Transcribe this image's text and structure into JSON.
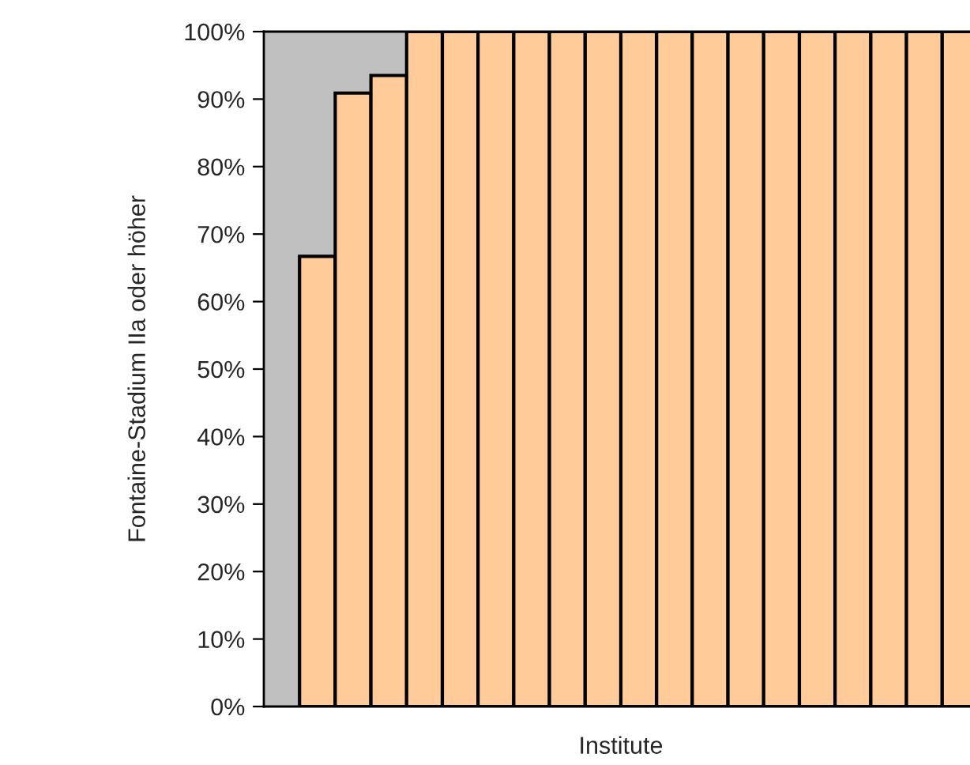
{
  "chart_data": {
    "type": "bar",
    "xlabel": "Institute",
    "ylabel": "Fontaine-Stadium IIa oder höher",
    "categories": [
      null,
      null,
      null,
      null,
      null,
      null,
      null,
      null,
      null,
      null,
      null,
      null,
      null,
      null,
      null,
      null,
      null,
      null,
      null,
      null
    ],
    "values": [
      null,
      0.667,
      0.909,
      0.935,
      1,
      1,
      1,
      1,
      1,
      1,
      1,
      1,
      1,
      1,
      1,
      1,
      1,
      1,
      1,
      1
    ],
    "color": "#ffcc99",
    "ylim": [
      0,
      1
    ],
    "yticks": [
      {
        "value": 0,
        "label": "0%"
      },
      {
        "value": 0.1,
        "label": "10%"
      },
      {
        "value": 0.2,
        "label": "20%"
      },
      {
        "value": 0.3,
        "label": "30%"
      },
      {
        "value": 0.4,
        "label": "40%"
      },
      {
        "value": 0.5,
        "label": "50%"
      },
      {
        "value": 0.6,
        "label": "60%"
      },
      {
        "value": 0.7,
        "label": "70%"
      },
      {
        "value": 0.8,
        "label": "80%"
      },
      {
        "value": 0.9,
        "label": "90%"
      },
      {
        "value": 1,
        "label": "100%"
      }
    ],
    "grid": false
  }
}
